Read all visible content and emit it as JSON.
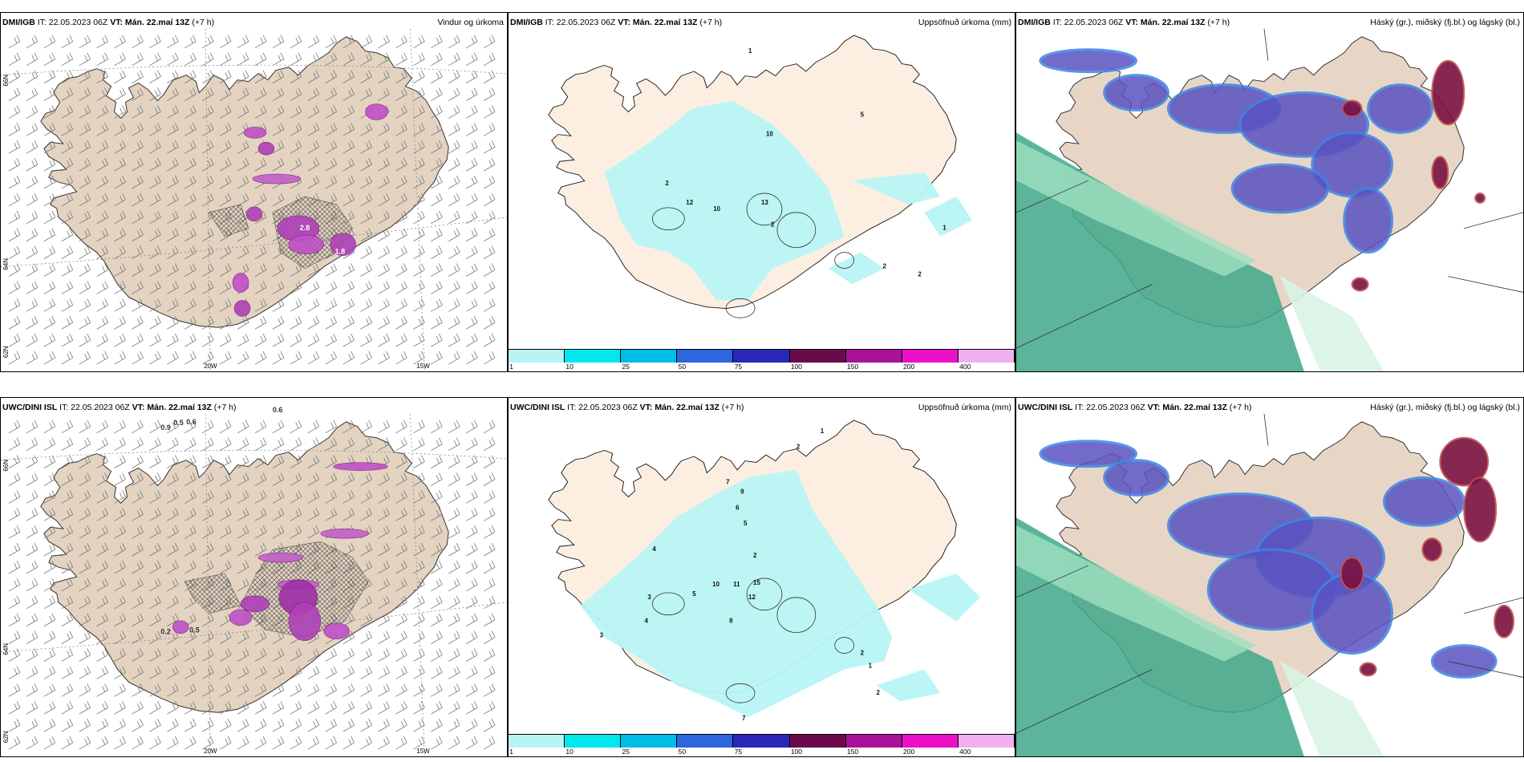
{
  "panels": [
    {
      "id": "p1",
      "model": "DMI/IGB",
      "it": "IT: 22.05.2023 06Z",
      "vt": "VT: Mán. 22.maí 13Z",
      "lead": "(+7 h)",
      "product": "Vindur og úrkoma",
      "type": "wind"
    },
    {
      "id": "p2",
      "model": "DMI/IGB",
      "it": "IT: 22.05.2023 06Z",
      "vt": "VT: Mán. 22.maí 13Z",
      "lead": "(+7 h)",
      "product": "Uppsöfnuð úrkoma (mm)",
      "type": "precip"
    },
    {
      "id": "p3",
      "model": "DMI/IGB",
      "it": "IT: 22.05.2023 06Z",
      "vt": "VT: Mán. 22.maí 13Z",
      "lead": "(+7 h)",
      "product": "Háský (gr.), miðský (fj.bl.) og lágský (bl.)",
      "type": "cloud"
    },
    {
      "id": "p4",
      "model": "UWC/DINI ISL",
      "it": "IT: 22.05.2023 06Z",
      "vt": "VT: Mán. 22.maí 13Z",
      "lead": "(+7 h)",
      "product": "",
      "type": "wind"
    },
    {
      "id": "p5",
      "model": "UWC/DINI ISL",
      "it": "IT: 22.05.2023 06Z",
      "vt": "VT: Mán. 22.maí 13Z",
      "lead": "(+7 h)",
      "product": "Uppsöfnuð úrkoma (mm)",
      "type": "precip"
    },
    {
      "id": "p6",
      "model": "UWC/DINI ISL",
      "it": "IT: 22.05.2023 06Z",
      "vt": "VT: Mán. 22.maí 13Z",
      "lead": "(+7 h)",
      "product": "Háský (gr.), miðský (fj.bl.) og lágský (bl.)",
      "type": "cloud"
    }
  ],
  "axes": {
    "lat_66": "66N",
    "lat_64": "64N",
    "lat_62": "62N",
    "lon_20": "20W",
    "lon_15": "15W"
  },
  "colorbar": {
    "ticks": [
      "1",
      "10",
      "25",
      "50",
      "75",
      "100",
      "150",
      "200",
      "400"
    ],
    "colors": [
      "#b8f4f4",
      "#00e8ee",
      "#00bde8",
      "#2e66e0",
      "#2b28b8",
      "#6a0a4a",
      "#a8129a",
      "#ec10c8",
      "#f0b0f0"
    ]
  },
  "precip_labels_p2": [
    "1",
    "10",
    "2",
    "5",
    "10",
    "12",
    "13",
    "2",
    "1",
    "2",
    "2"
  ],
  "wind_labels_p4": [
    "0.9",
    "0.6",
    "0.5",
    "0.6",
    "0.2",
    "0.5"
  ],
  "wind_labels_p1": [
    "2.8",
    "1.8"
  ],
  "precip_labels_p5": [
    "2",
    "1",
    "3",
    "7",
    "9",
    "6",
    "5",
    "4",
    "2",
    "10",
    "15",
    "11",
    "12",
    "8",
    "3",
    "4",
    "5",
    "2",
    "1",
    "2",
    "7"
  ]
}
